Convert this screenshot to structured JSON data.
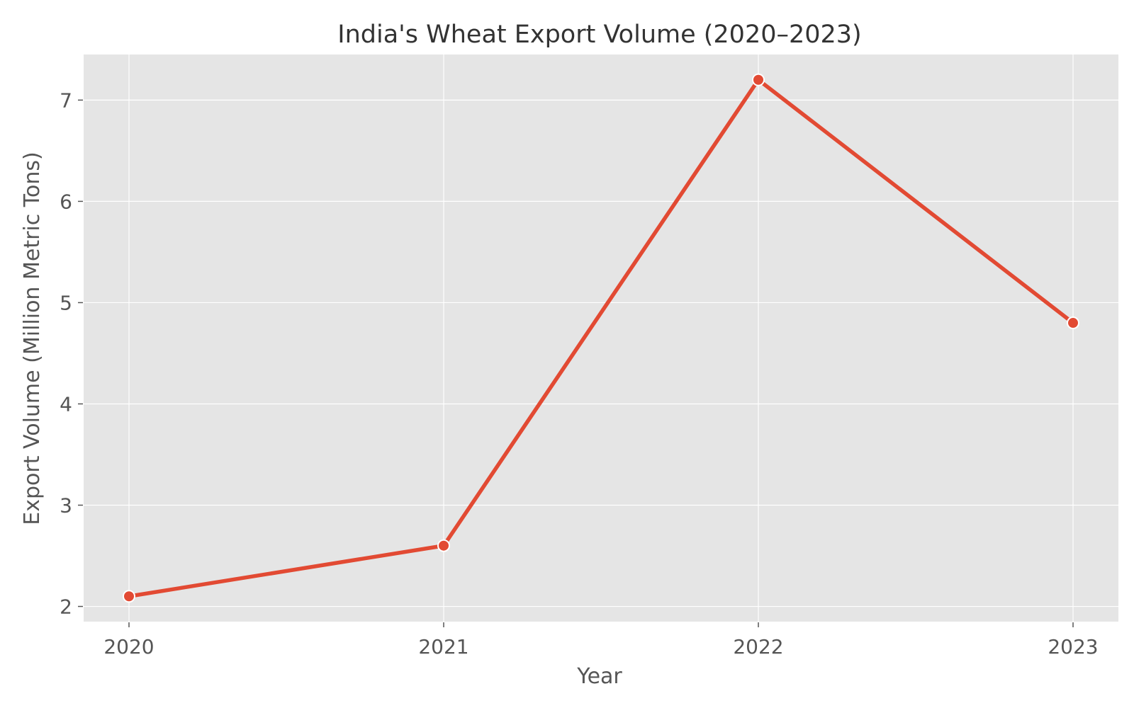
{
  "chart_data": {
    "type": "line",
    "title": "India's Wheat Export Volume (2020–2023)",
    "xlabel": "Year",
    "ylabel": "Export Volume (Million Metric Tons)",
    "categories": [
      "2020",
      "2021",
      "2022",
      "2023"
    ],
    "series": [
      {
        "values": [
          2.1,
          2.6,
          7.2,
          4.8
        ],
        "color": "#E24A33"
      }
    ],
    "y_ticks": [
      2,
      3,
      4,
      5,
      6,
      7
    ],
    "ylim": [
      1.85,
      7.45
    ],
    "grid": true,
    "background_color": "#E5E5E5",
    "marker": "circle"
  }
}
